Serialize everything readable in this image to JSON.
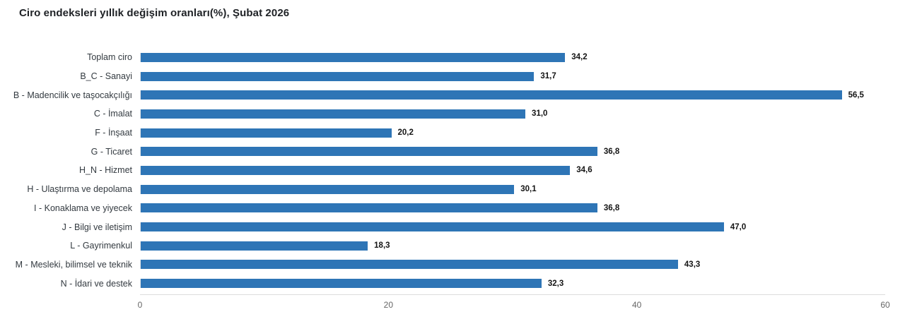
{
  "chart_data": {
    "type": "bar",
    "orientation": "horizontal",
    "title": "Ciro endeksleri yıllık değişim oranları(%), Şubat 2026",
    "categories": [
      "Toplam ciro",
      "B_C - Sanayi",
      "B - Madencilik ve taşocakçılığı",
      "C - İmalat",
      "F - İnşaat",
      "G - Ticaret",
      "H_N - Hizmet",
      "H - Ulaştırma ve depolama",
      "I - Konaklama ve yiyecek",
      "J - Bilgi ve iletişim",
      "L - Gayrimenkul",
      "M - Mesleki, bilimsel ve teknik",
      "N - İdari ve destek"
    ],
    "values": [
      34.2,
      31.7,
      56.5,
      31.0,
      20.2,
      36.8,
      34.6,
      30.1,
      36.8,
      47.0,
      18.3,
      43.3,
      32.3
    ],
    "value_labels": [
      "34,2",
      "31,7",
      "56,5",
      "31,0",
      "20,2",
      "36,8",
      "34,6",
      "30,1",
      "36,8",
      "47,0",
      "18,3",
      "43,3",
      "32,3"
    ],
    "xlabel": "",
    "ylabel": "",
    "xlim": [
      0,
      60
    ],
    "x_ticks": [
      "0",
      "20",
      "40",
      "60"
    ],
    "grid": false,
    "legend": false,
    "bar_color": "#2e75b6"
  }
}
